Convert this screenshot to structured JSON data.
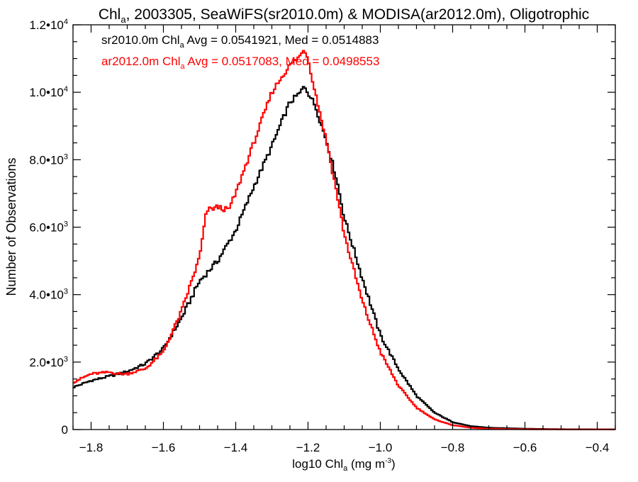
{
  "chart_data": {
    "type": "line",
    "title": {
      "before": "Chl",
      "sub": "a",
      "after": ", 2003305, SeaWiFS(sr2010.0m) & MODISA(ar2012.0m), Oligotrophic"
    },
    "xlabel": {
      "before": "log10 Chl",
      "sub": "a",
      "after": " (mg m",
      "sup": "-3",
      "end": ")"
    },
    "ylabel": "Number of Observations",
    "xlim": [
      -1.85,
      -0.35
    ],
    "ylim": [
      0,
      12000
    ],
    "x_ticks": [
      {
        "value": -1.8,
        "label": "−1.8"
      },
      {
        "value": -1.6,
        "label": "−1.6"
      },
      {
        "value": -1.4,
        "label": "−1.4"
      },
      {
        "value": -1.2,
        "label": "−1.2"
      },
      {
        "value": -1.0,
        "label": "−1.0"
      },
      {
        "value": -0.8,
        "label": "−0.8"
      },
      {
        "value": -0.6,
        "label": "−0.6"
      },
      {
        "value": -0.4,
        "label": "−0.4"
      }
    ],
    "y_ticks": [
      {
        "value": 0,
        "mantissa": "0",
        "exp": ""
      },
      {
        "value": 2000,
        "mantissa": "2.0•10",
        "exp": "3"
      },
      {
        "value": 4000,
        "mantissa": "4.0•10",
        "exp": "3"
      },
      {
        "value": 6000,
        "mantissa": "6.0•10",
        "exp": "3"
      },
      {
        "value": 8000,
        "mantissa": "8.0•10",
        "exp": "3"
      },
      {
        "value": 10000,
        "mantissa": "1.0•10",
        "exp": "4"
      },
      {
        "value": 12000,
        "mantissa": "1.2•10",
        "exp": "4"
      }
    ],
    "annotations": [
      {
        "before": "sr2010.0m Chl",
        "sub": "a",
        "after": " Avg = 0.0541921, Med = 0.0514883",
        "color": "#000000"
      },
      {
        "before": "ar2012.0m Chl",
        "sub": "a",
        "after": " Avg = 0.0517083, Med = 0.0498553",
        "color": "#ff0000"
      }
    ],
    "step_width": 0.005,
    "series": [
      {
        "color": "#000000",
        "points": [
          [
            -1.85,
            1250
          ],
          [
            -1.8,
            1450
          ],
          [
            -1.75,
            1580
          ],
          [
            -1.7,
            1720
          ],
          [
            -1.65,
            1950
          ],
          [
            -1.6,
            2400
          ],
          [
            -1.55,
            3300
          ],
          [
            -1.5,
            4400
          ],
          [
            -1.45,
            5000
          ],
          [
            -1.4,
            5900
          ],
          [
            -1.35,
            7200
          ],
          [
            -1.3,
            8400
          ],
          [
            -1.27,
            9200
          ],
          [
            -1.25,
            9700
          ],
          [
            -1.22,
            10000
          ],
          [
            -1.21,
            10200
          ],
          [
            -1.2,
            10000
          ],
          [
            -1.18,
            9600
          ],
          [
            -1.15,
            8600
          ],
          [
            -1.12,
            7400
          ],
          [
            -1.1,
            6300
          ],
          [
            -1.05,
            4500
          ],
          [
            -1.0,
            2800
          ],
          [
            -0.95,
            1800
          ],
          [
            -0.9,
            1000
          ],
          [
            -0.85,
            500
          ],
          [
            -0.8,
            220
          ],
          [
            -0.75,
            100
          ],
          [
            -0.7,
            55
          ],
          [
            -0.6,
            25
          ],
          [
            -0.5,
            10
          ],
          [
            -0.35,
            5
          ]
        ]
      },
      {
        "color": "#ff0000",
        "points": [
          [
            -1.85,
            1400
          ],
          [
            -1.8,
            1650
          ],
          [
            -1.75,
            1700
          ],
          [
            -1.72,
            1650
          ],
          [
            -1.7,
            1650
          ],
          [
            -1.65,
            1800
          ],
          [
            -1.6,
            2300
          ],
          [
            -1.55,
            3500
          ],
          [
            -1.5,
            5100
          ],
          [
            -1.48,
            6500
          ],
          [
            -1.45,
            6600
          ],
          [
            -1.42,
            6500
          ],
          [
            -1.4,
            7000
          ],
          [
            -1.35,
            8500
          ],
          [
            -1.3,
            10000
          ],
          [
            -1.27,
            10500
          ],
          [
            -1.25,
            10800
          ],
          [
            -1.22,
            11100
          ],
          [
            -1.21,
            11300
          ],
          [
            -1.2,
            11000
          ],
          [
            -1.18,
            10000
          ],
          [
            -1.15,
            8600
          ],
          [
            -1.12,
            7000
          ],
          [
            -1.1,
            5800
          ],
          [
            -1.05,
            3800
          ],
          [
            -1.0,
            2300
          ],
          [
            -0.95,
            1300
          ],
          [
            -0.9,
            650
          ],
          [
            -0.85,
            300
          ],
          [
            -0.8,
            130
          ],
          [
            -0.75,
            55
          ],
          [
            -0.7,
            25
          ],
          [
            -0.6,
            10
          ],
          [
            -0.5,
            5
          ],
          [
            -0.35,
            2
          ]
        ]
      }
    ]
  }
}
